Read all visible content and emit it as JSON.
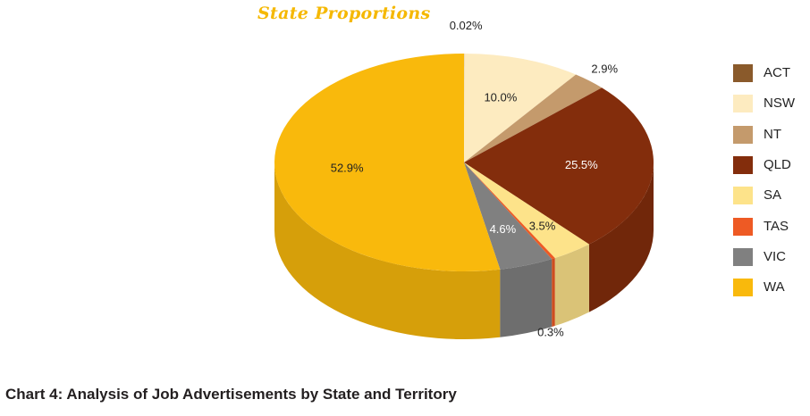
{
  "chart_data": {
    "type": "pie",
    "title": "State Proportions",
    "caption": "Chart 4: Analysis of Job Advertisements by State and Territory",
    "legend_position": "right",
    "slices": [
      {
        "label": "ACT",
        "value": 0.02,
        "value_label": "0.02%",
        "color": "#8a5a2b"
      },
      {
        "label": "NSW",
        "value": 10.0,
        "value_label": "10.0%",
        "color": "#fdebc0"
      },
      {
        "label": "NT",
        "value": 2.9,
        "value_label": "2.9%",
        "color": "#c49a6c"
      },
      {
        "label": "QLD",
        "value": 25.5,
        "value_label": "25.5%",
        "color": "#832d0c"
      },
      {
        "label": "SA",
        "value": 3.5,
        "value_label": "3.5%",
        "color": "#fde38a"
      },
      {
        "label": "TAS",
        "value": 0.3,
        "value_label": "0.3%",
        "color": "#ee5a24"
      },
      {
        "label": "VIC",
        "value": 4.6,
        "value_label": "4.6%",
        "color": "#808080"
      },
      {
        "label": "WA",
        "value": 52.9,
        "value_label": "52.9%",
        "color": "#f9b90c"
      }
    ]
  }
}
